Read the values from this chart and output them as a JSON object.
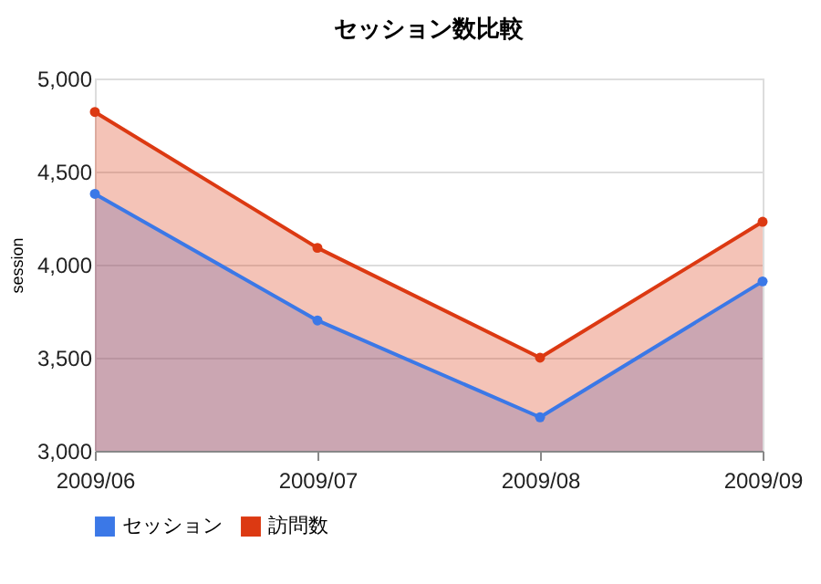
{
  "chart_data": {
    "type": "area",
    "title": "セッション数比較",
    "ylabel": "session",
    "categories": [
      "2009/06",
      "2009/07",
      "2009/08",
      "2009/09"
    ],
    "series": [
      {
        "name": "セッション",
        "color": "#3b78e7",
        "values": [
          4380,
          3700,
          3180,
          3910
        ]
      },
      {
        "name": "訪問数",
        "color": "#dc3912",
        "values": [
          4820,
          4090,
          3500,
          4230
        ]
      }
    ],
    "ylim": [
      3000,
      5000
    ],
    "yticks": [
      {
        "value": 3000,
        "label": "3,000"
      },
      {
        "value": 3500,
        "label": "3,500"
      },
      {
        "value": 4000,
        "label": "4,000"
      },
      {
        "value": 4500,
        "label": "4,500"
      },
      {
        "value": 5000,
        "label": "5,000"
      }
    ],
    "grid": "y",
    "legend": "bottom",
    "marker": "circle"
  }
}
